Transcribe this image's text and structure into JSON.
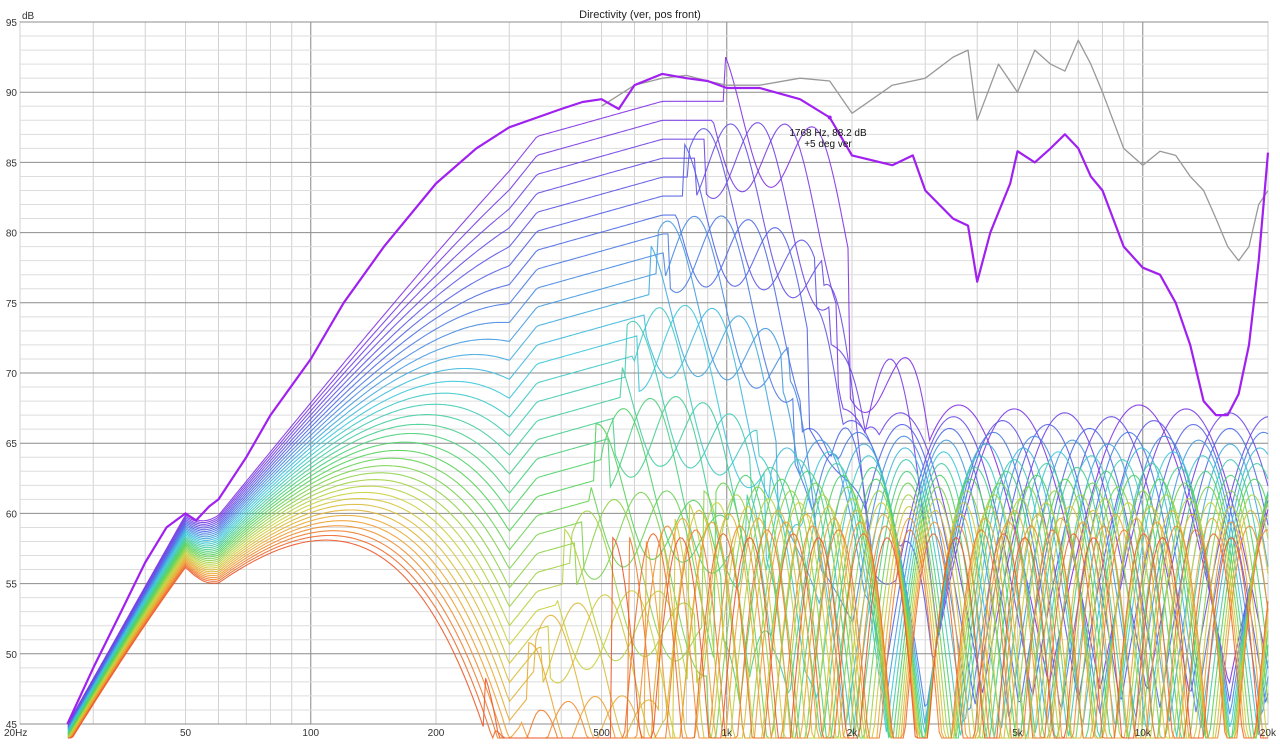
{
  "chart_data": {
    "type": "line",
    "title": "Directivity (ver, pos front)",
    "ylabel": "dB",
    "xscale": "log",
    "xlim": [
      20,
      20000
    ],
    "ylim": [
      45,
      95
    ],
    "grid": true,
    "x_tick_labels": [
      "20Hz",
      "50",
      "100",
      "200",
      "500",
      "1k",
      "2k",
      "5k",
      "10k",
      "20k"
    ],
    "x_tick_values": [
      20,
      50,
      100,
      200,
      500,
      1000,
      2000,
      5000,
      10000,
      20000
    ],
    "y_ticks": [
      45,
      50,
      55,
      60,
      65,
      70,
      75,
      80,
      85,
      90,
      95
    ],
    "annotation": {
      "line1": "1768 Hz, 88.2 dB",
      "line2": "+5 deg ver",
      "x": 1768,
      "y": 88.2
    },
    "highlight_color": "#a020f0",
    "series": [
      {
        "color": "#999999",
        "x": [
          500,
          600,
          700,
          800,
          900,
          1000,
          1200,
          1500,
          1768,
          2000,
          2500,
          3000,
          3500,
          3800,
          4000,
          4500,
          5000,
          5500,
          6000,
          6500,
          7000,
          7500,
          8000,
          9000,
          10000,
          11000,
          12000,
          13000,
          14000,
          15000,
          16000,
          17000,
          18000,
          19000,
          20000
        ],
        "y": [
          89,
          90.5,
          91,
          91.2,
          90.8,
          90.5,
          90.5,
          91,
          90.8,
          88.5,
          90.5,
          91,
          92.5,
          93,
          88,
          92,
          90,
          93,
          92,
          91.5,
          93.7,
          92,
          90,
          86,
          84.8,
          85.8,
          85.5,
          84,
          83,
          81,
          79,
          78,
          79,
          82,
          83
        ]
      },
      {
        "color": "#a020f0",
        "x": [
          26,
          30,
          35,
          40,
          45,
          50,
          53,
          57,
          60,
          70,
          80,
          100,
          120,
          150,
          200,
          250,
          300,
          350,
          400,
          450,
          500,
          550,
          600,
          700,
          800,
          900,
          1000,
          1200,
          1500,
          1768,
          2000,
          2500,
          2800,
          3000,
          3500,
          3800,
          4000,
          4300,
          4800,
          5000,
          5500,
          6000,
          6500,
          7000,
          7500,
          8000,
          9000,
          10000,
          11000,
          12000,
          13000,
          14000,
          15000,
          16000,
          17000,
          18000,
          19000,
          20000
        ],
        "y": [
          45,
          49,
          53,
          56.5,
          59,
          60,
          59.5,
          60.5,
          61,
          64,
          67,
          71,
          75,
          79,
          83.5,
          86,
          87.5,
          88.2,
          88.8,
          89.3,
          89.5,
          88.8,
          90.5,
          91.3,
          91,
          90.8,
          90.3,
          90.3,
          89.5,
          88.2,
          85.5,
          84.8,
          85.5,
          83,
          81,
          80.5,
          76.5,
          80,
          83.5,
          85.8,
          85,
          86,
          87,
          86,
          84,
          83,
          79,
          77.5,
          77,
          75,
          72,
          68,
          67,
          67,
          68.5,
          72,
          78,
          85.7
        ]
      }
    ]
  }
}
